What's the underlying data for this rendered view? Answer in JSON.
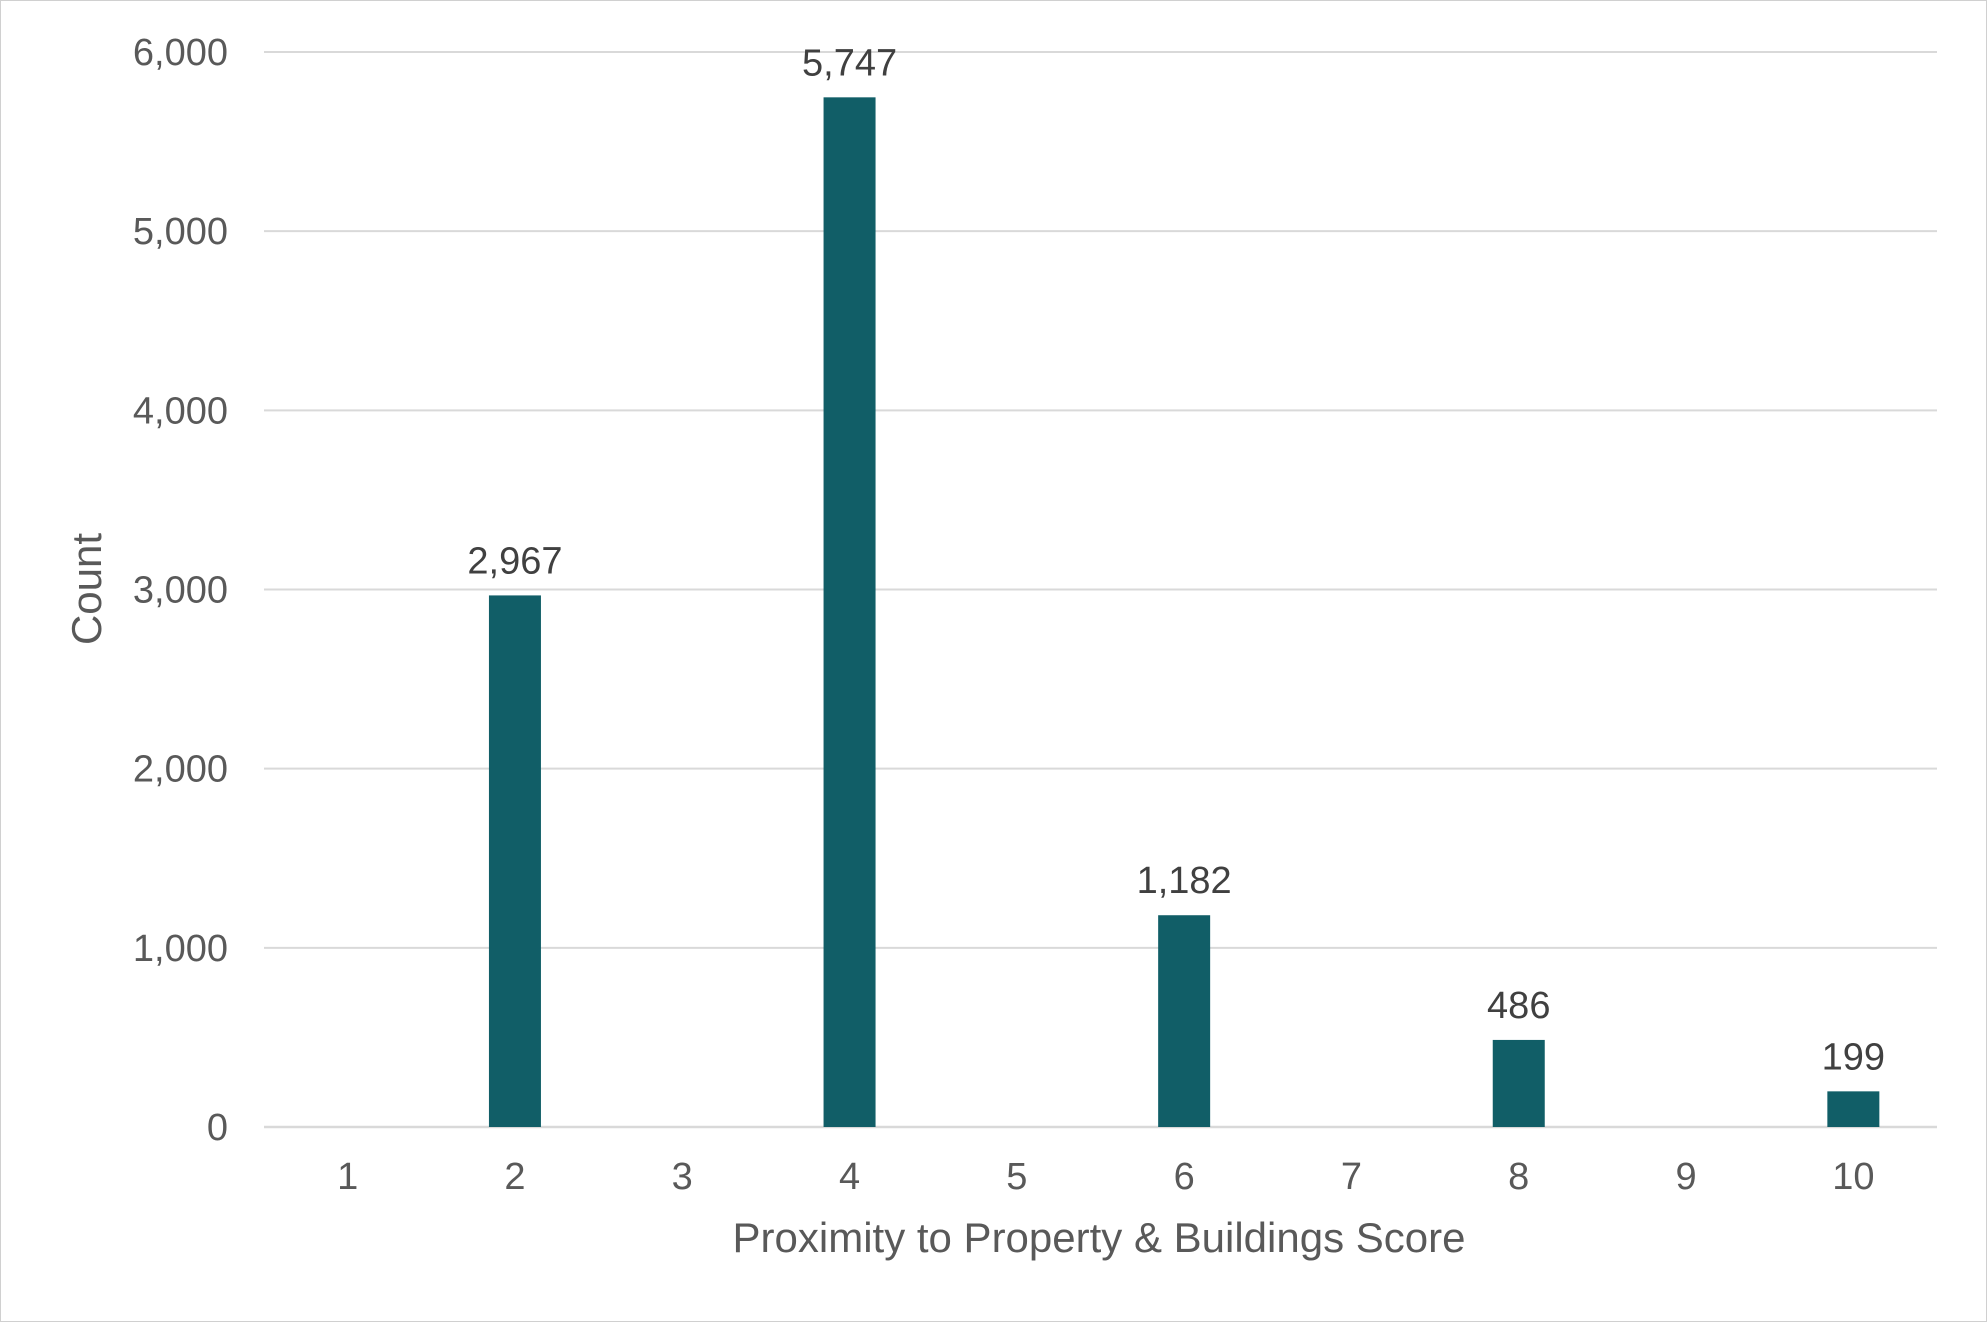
{
  "chart_data": {
    "type": "bar",
    "title": "",
    "xlabel": "Proximity to Property & Buildings Score",
    "ylabel": "Count",
    "categories": [
      "1",
      "2",
      "3",
      "4",
      "5",
      "6",
      "7",
      "8",
      "9",
      "10"
    ],
    "values": [
      0,
      2967,
      0,
      5747,
      0,
      1182,
      0,
      486,
      0,
      199
    ],
    "data_labels": [
      "",
      "2,967",
      "",
      "5,747",
      "",
      "1,182",
      "",
      "486",
      "",
      "199"
    ],
    "ylim": [
      0,
      6000
    ],
    "yticks": [
      0,
      1000,
      2000,
      3000,
      4000,
      5000,
      6000
    ],
    "ytick_labels": [
      "0",
      "1,000",
      "2,000",
      "3,000",
      "4,000",
      "5,000",
      "6,000"
    ],
    "grid": true,
    "legend": "none",
    "bar_color": "#115e67"
  }
}
